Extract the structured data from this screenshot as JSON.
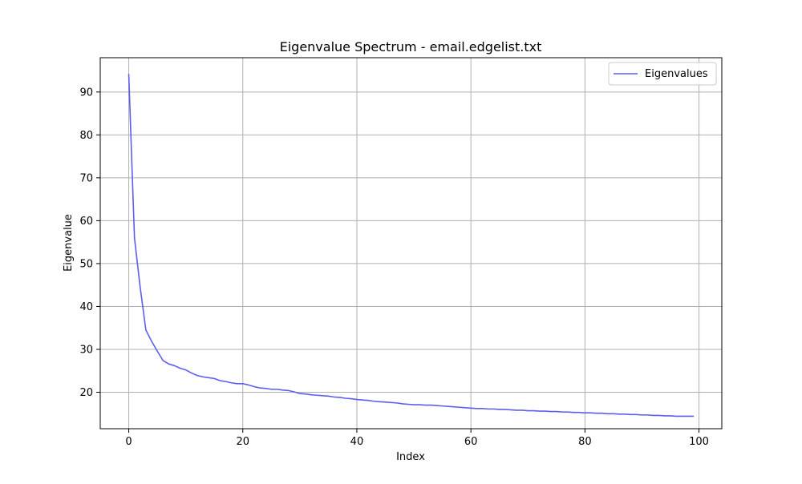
{
  "chart_data": {
    "type": "line",
    "title": "Eigenvalue Spectrum - email.edgelist.txt",
    "xlabel": "Index",
    "ylabel": "Eigenvalue",
    "xlim": [
      -5,
      104
    ],
    "ylim": [
      11.5,
      98
    ],
    "xticks": [
      0,
      20,
      40,
      60,
      80,
      100
    ],
    "yticks": [
      20,
      30,
      40,
      50,
      60,
      70,
      80,
      90
    ],
    "grid": true,
    "legend_position": "top-right",
    "series": [
      {
        "name": "Eigenvalues",
        "color": "#5b5ef0",
        "x": [
          0,
          1,
          2,
          3,
          4,
          5,
          6,
          7,
          8,
          9,
          10,
          11,
          12,
          13,
          14,
          15,
          16,
          17,
          18,
          19,
          20,
          21,
          22,
          23,
          24,
          25,
          26,
          27,
          28,
          29,
          30,
          31,
          32,
          33,
          34,
          35,
          36,
          37,
          38,
          39,
          40,
          41,
          42,
          43,
          44,
          45,
          46,
          47,
          48,
          49,
          50,
          51,
          52,
          53,
          54,
          55,
          56,
          57,
          58,
          59,
          60,
          61,
          62,
          63,
          64,
          65,
          66,
          67,
          68,
          69,
          70,
          71,
          72,
          73,
          74,
          75,
          76,
          77,
          78,
          79,
          80,
          81,
          82,
          83,
          84,
          85,
          86,
          87,
          88,
          89,
          90,
          91,
          92,
          93,
          94,
          95,
          96,
          97,
          98,
          99
        ],
        "y": [
          94.1,
          56.0,
          44.5,
          34.5,
          31.9,
          29.6,
          27.4,
          26.6,
          26.2,
          25.6,
          25.2,
          24.5,
          23.9,
          23.6,
          23.4,
          23.2,
          22.7,
          22.5,
          22.2,
          22.0,
          22.0,
          21.7,
          21.3,
          21.0,
          20.9,
          20.7,
          20.7,
          20.5,
          20.4,
          20.1,
          19.7,
          19.6,
          19.4,
          19.3,
          19.2,
          19.1,
          18.9,
          18.8,
          18.6,
          18.5,
          18.3,
          18.2,
          18.1,
          17.9,
          17.8,
          17.7,
          17.6,
          17.5,
          17.3,
          17.2,
          17.1,
          17.1,
          17.0,
          17.0,
          16.9,
          16.8,
          16.7,
          16.6,
          16.5,
          16.4,
          16.3,
          16.2,
          16.2,
          16.1,
          16.1,
          16.0,
          16.0,
          15.9,
          15.8,
          15.8,
          15.7,
          15.7,
          15.6,
          15.6,
          15.5,
          15.5,
          15.4,
          15.4,
          15.3,
          15.3,
          15.2,
          15.2,
          15.1,
          15.1,
          15.0,
          15.0,
          14.9,
          14.9,
          14.8,
          14.8,
          14.7,
          14.7,
          14.6,
          14.6,
          14.5,
          14.5,
          14.4,
          14.4,
          14.4,
          14.4
        ]
      }
    ]
  }
}
